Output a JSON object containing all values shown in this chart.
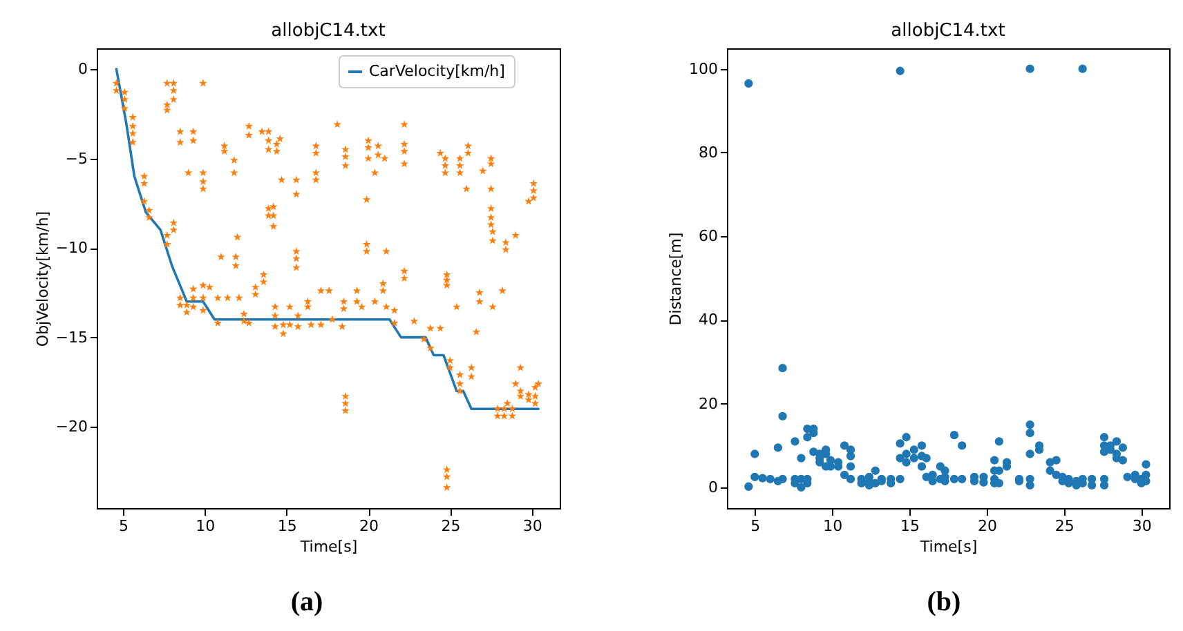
{
  "chart_data": [
    {
      "type": "scatter",
      "title": "allobjC14.txt",
      "xlabel": "Time[s]",
      "ylabel": "ObjVelocity[km/h]",
      "xlim": [
        3.4,
        31.7
      ],
      "ylim": [
        -24.55,
        1.16
      ],
      "xticks": [
        5,
        10,
        15,
        20,
        25,
        30
      ],
      "yticks": [
        0,
        -5,
        -10,
        -15,
        -20
      ],
      "grid": false,
      "legend": "top right",
      "annotations": [
        "(a)"
      ],
      "series": [
        {
          "type": "line",
          "name": "CarVelocity[km/h]",
          "color": "#1f77b4",
          "marker": "none",
          "x": [
            4.6,
            5.2,
            5.7,
            6.4,
            7.3,
            8,
            8.9,
            9.9,
            10.6,
            15,
            21.3,
            22,
            23.5,
            24,
            24.6,
            25.4,
            25.8,
            26.3,
            30.4
          ],
          "values": [
            0,
            -3,
            -6,
            -8,
            -9,
            -11,
            -13,
            -13,
            -14,
            -14,
            -14,
            -15,
            -15,
            -16,
            -16,
            -18,
            -18,
            -19,
            -19
          ]
        },
        {
          "color": "#ff7f0e",
          "marker": "star",
          "x": [
            4.6,
            4.6,
            5.1,
            5.1,
            5.1,
            5.6,
            5.6,
            5.6,
            5.6,
            6.3,
            6.3,
            6.3,
            6.6,
            6.6,
            7.7,
            7.7,
            7.7,
            8.1,
            8.1,
            8.1,
            7.7,
            7.7,
            8.1,
            8.1,
            8.5,
            8.5,
            8.5,
            8.5,
            9,
            9.3,
            9.3,
            9.9,
            9.9,
            9.9,
            9.9,
            8.9,
            8.9,
            9.3,
            9.3,
            9.3,
            9.9,
            9.9,
            9.9,
            10.3,
            10.8,
            10.8,
            11,
            11.2,
            11.2,
            11.4,
            11.8,
            11.8,
            11.9,
            11.9,
            12,
            12.1,
            12.4,
            12.4,
            12.7,
            12.7,
            12.7,
            13.1,
            13.1,
            13.5,
            13.9,
            13.9,
            13.9,
            13.9,
            13.9,
            13.6,
            13.6,
            14.2,
            14.2,
            14.2,
            14.4,
            14.4,
            14.6,
            14.7,
            14.3,
            14.3,
            14.3,
            14.8,
            14.8,
            15.2,
            15.2,
            15.6,
            15.6,
            15.6,
            15.6,
            15.6,
            15.7,
            15.7,
            16.3,
            16.3,
            16.5,
            16.8,
            16.8,
            16.8,
            16.8,
            17.1,
            17.1,
            17.6,
            17.8,
            18.1,
            18.5,
            18.5,
            18.6,
            18.6,
            18.6,
            18.6,
            18.6,
            18.6,
            18.4,
            19.3,
            19.3,
            19.6,
            19.9,
            19.9,
            19.9,
            20,
            20,
            20,
            20.4,
            20.6,
            20.6,
            20.4,
            20.9,
            20.9,
            21.1,
            21.1,
            21,
            21.6,
            21.6,
            22.2,
            22.2,
            22.2,
            22.2,
            22.2,
            22.2,
            22.8,
            23.4,
            23.8,
            23.8,
            24.4,
            24.4,
            24.7,
            24.7,
            24.7,
            24.8,
            24.8,
            24.8,
            24.8,
            24.8,
            24.8,
            25,
            25,
            25.4,
            25.6,
            25.6,
            25.6,
            25.6,
            25.6,
            25.6,
            26,
            26.1,
            26.1,
            26.3,
            26.3,
            26.6,
            26.8,
            26.8,
            27,
            27.5,
            27.5,
            27.5,
            27.5,
            27.5,
            27.5,
            27.6,
            27.6,
            27.6,
            27.9,
            27.9,
            28.2,
            28.4,
            28.4,
            28.3,
            28.3,
            28.5,
            28.8,
            28.8,
            29,
            29,
            29.3,
            29.3,
            29.3,
            29.8,
            30.1,
            30.1,
            30.1,
            29.8,
            29.8,
            30.2,
            30.2,
            30.2,
            30.4
          ],
          "values": [
            -0.8,
            -1.2,
            -1.3,
            -1.7,
            -2.2,
            -2.7,
            -3.2,
            -3.6,
            -4.1,
            -6,
            -6.4,
            -7.4,
            -7.9,
            -8.3,
            -0.8,
            -2,
            -2.3,
            -0.8,
            -1.2,
            -1.7,
            -9.3,
            -9.8,
            -8.6,
            -9,
            -3.5,
            -4.1,
            -12.8,
            -13.2,
            -5.8,
            -3.5,
            -4,
            -0.8,
            -5.8,
            -6.3,
            -6.7,
            -13.6,
            -13.2,
            -12.3,
            -12.8,
            -13.3,
            -12.1,
            -12.8,
            -13.5,
            -12.2,
            -12.8,
            -14.2,
            -10.5,
            -4.3,
            -4.6,
            -12.8,
            -5.1,
            -5.8,
            -10.5,
            -11,
            -9.4,
            -12.8,
            -13.7,
            -14.1,
            -3.2,
            -3.7,
            -14.2,
            -12.2,
            -12.6,
            -3.5,
            -3.5,
            -4,
            -4.5,
            -8.2,
            -7.8,
            -11.5,
            -11.9,
            -7.7,
            -8.2,
            -8.8,
            -4.2,
            -4.6,
            -3.9,
            -6.2,
            -13.3,
            -13.8,
            -14.4,
            -14.8,
            -14.3,
            -13.3,
            -14.3,
            -10.2,
            -10.6,
            -11.1,
            -6.2,
            -7,
            -13.8,
            -14.4,
            -13,
            -13.3,
            -14.3,
            -4.3,
            -4.7,
            -5.8,
            -6.2,
            -12.4,
            -14.3,
            -12.4,
            -14,
            -3.1,
            -13,
            -13.4,
            -4.5,
            -4.9,
            -5.4,
            -18.3,
            -18.7,
            -19.1,
            -14.4,
            -12.4,
            -13,
            -13.3,
            -7.3,
            -9.8,
            -10.2,
            -4,
            -4.4,
            -5,
            -5.8,
            -4.3,
            -4.8,
            -13,
            -12,
            -12.4,
            -13.3,
            -10.2,
            -5,
            -13.5,
            -14.2,
            -3.1,
            -4.2,
            -4.6,
            -5.3,
            -11.3,
            -11.7,
            -14.1,
            -15.1,
            -14.5,
            -15.6,
            -14.5,
            -4.7,
            -5,
            -5.4,
            -5.8,
            -11.5,
            -11.8,
            -12.1,
            -22.4,
            -22.8,
            -23.4,
            -16.7,
            -16.3,
            -13.3,
            -5,
            -5.4,
            -5.8,
            -17.6,
            -18,
            -17.1,
            -6.7,
            -4.3,
            -4.7,
            -16.7,
            -17.2,
            -14.7,
            -12.5,
            -13,
            -5.7,
            -5,
            -5.3,
            -6.7,
            -7.8,
            -8.3,
            -8.7,
            -9.1,
            -9.6,
            -13.3,
            -19,
            -19.4,
            -12.4,
            -9.7,
            -10.1,
            -19,
            -19.4,
            -18.7,
            -19.4,
            -19,
            -9.3,
            -17.6,
            -16.7,
            -18.3,
            -18,
            -7.4,
            -6.4,
            -6.8,
            -7.2,
            -18.2,
            -18.5,
            -17.8,
            -18.3,
            -18.7,
            -17.6
          ]
        }
      ]
    },
    {
      "type": "scatter",
      "title": "allobjC14.txt",
      "xlabel": "Time[s]",
      "ylabel": "Distance[m]",
      "xlim": [
        3.2,
        31.8
      ],
      "ylim": [
        -4.95,
        104.9
      ],
      "xticks": [
        5,
        10,
        15,
        20,
        25,
        30
      ],
      "yticks": [
        0,
        20,
        40,
        60,
        80,
        100
      ],
      "grid": false,
      "marker": "circle",
      "annotations": [
        "(b)"
      ],
      "series": [
        {
          "color": "#1f77b4",
          "x": [
            4.6,
            4.6,
            5,
            5,
            5.5,
            6,
            6.5,
            6.5,
            6.8,
            6.8,
            6.8,
            7.6,
            7.6,
            7.6,
            8,
            8,
            8,
            8.4,
            8.4,
            8.4,
            8.4,
            8.8,
            8.8,
            8.8,
            9.2,
            9.2,
            9.2,
            9.6,
            9.6,
            9.6,
            9.9,
            9.9,
            10.4,
            10.4,
            10.8,
            10.8,
            11.2,
            11.2,
            11.2,
            11.2,
            11.9,
            11.9,
            12.4,
            12.4,
            12.4,
            12.8,
            12.8,
            13.2,
            13.2,
            13.8,
            13.8,
            14.4,
            14.4,
            14.4,
            14.4,
            14.8,
            14.8,
            14.8,
            15.3,
            15.3,
            15.8,
            15.8,
            15.8,
            16.1,
            16.1,
            16.5,
            16.5,
            17,
            17,
            17.3,
            17.3,
            17.3,
            17.9,
            17.9,
            18.4,
            18.4,
            19.2,
            19.2,
            19.8,
            19.8,
            20.5,
            20.5,
            20.5,
            20.5,
            20.8,
            20.8,
            20.8,
            21.3,
            21.3,
            22.1,
            22.1,
            22.8,
            22.8,
            22.8,
            22.8,
            22.8,
            22.8,
            23.4,
            23.4,
            24.1,
            24.1,
            24.5,
            24.5,
            24.9,
            24.9,
            25.3,
            25.3,
            25.8,
            25.8,
            26.2,
            26.2,
            26.2,
            26.8,
            26.8,
            27.6,
            27.6,
            27.6,
            27.6,
            27.6,
            28,
            28,
            28.4,
            28.4,
            28.4,
            28.8,
            28.8,
            29.1,
            29.6,
            29.6,
            30,
            30,
            30.3,
            30.3,
            30.3
          ],
          "values": [
            96.5,
            0.2,
            2.5,
            8,
            2.2,
            2,
            1.5,
            9.5,
            2,
            28.5,
            17,
            11,
            2,
            1,
            0,
            2,
            7,
            14,
            12,
            2,
            1,
            13,
            14,
            8.5,
            8,
            7,
            6,
            9,
            5,
            8,
            6.5,
            5,
            6,
            5,
            10,
            3,
            9,
            7.5,
            5,
            2,
            1,
            2,
            0.5,
            1.5,
            2.5,
            4,
            1,
            2,
            1.5,
            1,
            2,
            99.5,
            10.5,
            2,
            7,
            8,
            12,
            6,
            9,
            7,
            10,
            5,
            7.5,
            7,
            2.5,
            1.5,
            3,
            5,
            2,
            4,
            2.5,
            1.5,
            12.5,
            2,
            10,
            2,
            2.5,
            1.5,
            2.5,
            1.2,
            6.5,
            4,
            1,
            2,
            11,
            4,
            1,
            6,
            5,
            2,
            1.5,
            100,
            15,
            13,
            8,
            2,
            0.5,
            10,
            9,
            6,
            4,
            3,
            6.5,
            2.5,
            1.5,
            2,
            1,
            1.5,
            0.5,
            100,
            2,
            1,
            2,
            0.5,
            12,
            10,
            8.5,
            2,
            0.5,
            10,
            9,
            11,
            8,
            7,
            6.5,
            9.5,
            2.5,
            2,
            3,
            2,
            1,
            5.5,
            1.5,
            3
          ]
        }
      ]
    }
  ]
}
